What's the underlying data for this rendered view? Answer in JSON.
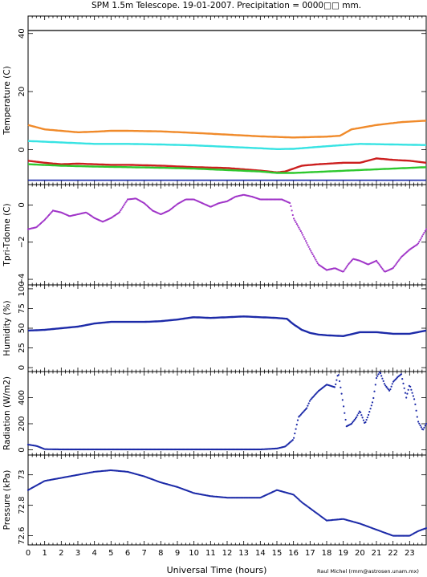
{
  "page": {
    "title": "SPM 1.5m Telescope. 19-01-2007. Precipitation = 0000□□ mm.",
    "xlabel": "Universal Time (hours)",
    "credit": "Raul Michel (rmm@astrosen.unam.mx)"
  },
  "colors": {
    "axis": "#000000",
    "orange": "#f08a2a",
    "cyan": "#37e3e3",
    "red": "#cc1f1f",
    "green": "#2ec82e",
    "blue": "#1a2aa8",
    "black_line": "#3a3a3a",
    "purple": "#a035c8",
    "navy": "#1c2aa8"
  },
  "chart_data": [
    {
      "type": "line",
      "ylabel": "Temperature (C)",
      "ylim": [
        -12,
        46
      ],
      "xlim": [
        0,
        24
      ],
      "yticks": [
        {
          "v": 0,
          "label": "0"
        },
        {
          "v": 20,
          "label": "20"
        },
        {
          "v": 40,
          "label": "40"
        }
      ],
      "series": [
        {
          "color": "black_line",
          "x": [
            0,
            4,
            8,
            12,
            16,
            20,
            24
          ],
          "y": [
            41,
            41,
            41,
            41,
            41,
            41,
            41
          ]
        },
        {
          "color": "orange",
          "x": [
            0,
            1,
            2,
            3,
            4,
            5,
            6,
            8,
            10,
            12,
            14,
            16,
            18,
            18.8,
            19.5,
            21,
            22.5,
            24
          ],
          "y": [
            8.5,
            7,
            6.5,
            6,
            6.2,
            6.5,
            6.5,
            6.3,
            5.8,
            5.2,
            4.6,
            4.2,
            4.5,
            4.8,
            7,
            8.5,
            9.5,
            10
          ]
        },
        {
          "color": "cyan",
          "x": [
            0,
            2,
            4,
            6,
            8,
            10,
            12,
            14,
            15,
            16,
            18,
            20,
            22,
            24
          ],
          "y": [
            3,
            2.5,
            2,
            2,
            1.8,
            1.5,
            1,
            0.5,
            0.2,
            0.3,
            1.2,
            2,
            1.8,
            1.6
          ]
        },
        {
          "color": "red",
          "x": [
            0,
            1,
            2,
            3,
            4,
            5,
            6,
            8,
            10,
            12,
            14,
            15,
            15.5,
            16.5,
            17.5,
            19,
            20,
            21,
            22,
            23,
            24
          ],
          "y": [
            -3.8,
            -4.5,
            -5,
            -4.8,
            -5,
            -5.2,
            -5.2,
            -5.5,
            -6,
            -6.3,
            -7.2,
            -7.8,
            -7.5,
            -5.5,
            -5,
            -4.5,
            -4.5,
            -3,
            -3.5,
            -3.8,
            -4.5
          ]
        },
        {
          "color": "green",
          "x": [
            0,
            2,
            4,
            6,
            8,
            10,
            12,
            14,
            15,
            16,
            18,
            20,
            22,
            24
          ],
          "y": [
            -5,
            -5.5,
            -5.8,
            -6,
            -6.2,
            -6.5,
            -7,
            -7.5,
            -8,
            -8,
            -7.5,
            -7,
            -6.5,
            -6
          ]
        },
        {
          "color": "blue",
          "x": [
            0,
            6,
            12,
            18,
            24
          ],
          "y": [
            -10.5,
            -10.5,
            -10.5,
            -10.5,
            -10.5
          ]
        }
      ]
    },
    {
      "type": "scatter",
      "ylabel": "Tpri-Tdome (C)",
      "ylim": [
        -4.3,
        1.1
      ],
      "xlim": [
        0,
        24
      ],
      "yticks": [
        {
          "v": 0,
          "label": "0"
        },
        {
          "v": -2,
          "label": "−2"
        },
        {
          "v": -4,
          "label": "−4"
        }
      ],
      "series": [
        {
          "color": "purple",
          "x": [
            0,
            0.5,
            1,
            1.5,
            2,
            2.5,
            3,
            3.5,
            4,
            4.5,
            5,
            5.5,
            6,
            6.5,
            7,
            7.5,
            8,
            8.5,
            9,
            9.5,
            10,
            10.5,
            11,
            11.5,
            12,
            12.5,
            13,
            13.5,
            14,
            14.5,
            15,
            15.3,
            15.8,
            16,
            16.5,
            17,
            17.5,
            18,
            18.5,
            19,
            19.3,
            19.6,
            20,
            20.5,
            21,
            21.5,
            22,
            22.5,
            23,
            23.5,
            24
          ],
          "y": [
            -1.3,
            -1.2,
            -0.8,
            -0.3,
            -0.4,
            -0.6,
            -0.5,
            -0.4,
            -0.7,
            -0.9,
            -0.7,
            -0.4,
            0.3,
            0.35,
            0.1,
            -0.3,
            -0.5,
            -0.3,
            0.05,
            0.3,
            0.3,
            0.1,
            -0.1,
            0.1,
            0.2,
            0.45,
            0.55,
            0.45,
            0.3,
            0.3,
            0.3,
            0.3,
            0.1,
            -0.7,
            -1.5,
            -2.4,
            -3.2,
            -3.5,
            -3.4,
            -3.6,
            -3.2,
            -2.9,
            -3.0,
            -3.2,
            -3.0,
            -3.6,
            -3.4,
            -2.8,
            -2.4,
            -2.1,
            -1.3
          ]
        }
      ]
    },
    {
      "type": "line",
      "ylabel": "Humidity (%)",
      "ylim": [
        -5,
        105
      ],
      "xlim": [
        0,
        24
      ],
      "yticks": [
        {
          "v": 0,
          "label": "0"
        },
        {
          "v": 25,
          "label": "25"
        },
        {
          "v": 50,
          "label": "50"
        },
        {
          "v": 75,
          "label": "75"
        },
        {
          "v": 100,
          "label": "100"
        }
      ],
      "series": [
        {
          "color": "navy",
          "x": [
            0,
            1,
            2,
            3,
            4,
            5,
            6,
            7,
            8,
            9,
            10,
            11,
            12,
            13,
            14,
            15,
            15.6,
            16,
            16.5,
            17,
            17.5,
            18,
            19,
            20,
            21,
            22,
            23,
            24
          ],
          "y": [
            47,
            48,
            50,
            52,
            56,
            58,
            58,
            58,
            59,
            61,
            64,
            63,
            64,
            65,
            64,
            63,
            62,
            55,
            48,
            44,
            42,
            41,
            40,
            45,
            45,
            43,
            43,
            47
          ]
        }
      ]
    },
    {
      "type": "scatter",
      "ylabel": "Radiation (W/m2)",
      "ylim": [
        -40,
        600
      ],
      "xlim": [
        0,
        24
      ],
      "yticks": [
        {
          "v": 0,
          "label": "0"
        },
        {
          "v": 200,
          "label": "200"
        },
        {
          "v": 400,
          "label": "400"
        }
      ],
      "series": [
        {
          "color": "navy",
          "x": [
            0,
            0.5,
            1,
            2,
            4,
            6,
            8,
            10,
            12,
            14,
            15,
            15.5,
            16,
            16.3,
            16.8,
            17,
            17.5,
            18,
            18.5,
            18.7,
            19,
            19.2,
            19.5,
            19.8,
            20,
            20.3,
            20.5,
            20.8,
            21,
            21.2,
            21.5,
            21.8,
            22,
            22.3,
            22.5,
            22.8,
            23,
            23.3,
            23.5,
            23.8,
            24
          ],
          "y": [
            40,
            30,
            5,
            3,
            3,
            3,
            3,
            3,
            3,
            3,
            10,
            25,
            80,
            250,
            320,
            380,
            450,
            500,
            480,
            590,
            350,
            180,
            200,
            250,
            300,
            200,
            260,
            380,
            550,
            600,
            500,
            450,
            520,
            560,
            580,
            400,
            500,
            380,
            220,
            150,
            200
          ]
        }
      ]
    },
    {
      "type": "scatter",
      "ylabel": "Pressure (kPa)",
      "ylim": [
        72.54,
        73.13
      ],
      "xlim": [
        0,
        24
      ],
      "yticks": [
        {
          "v": 72.6,
          "label": "72.6"
        },
        {
          "v": 72.8,
          "label": "72.8"
        },
        {
          "v": 73,
          "label": "73"
        }
      ],
      "series": [
        {
          "color": "navy",
          "x": [
            0,
            0.5,
            1,
            2,
            3,
            4,
            5,
            6,
            7,
            8,
            9,
            10,
            11,
            12,
            13,
            14,
            15,
            16,
            16.5,
            17,
            17.5,
            18,
            19,
            20,
            20.5,
            21,
            22,
            23,
            23.5,
            24
          ],
          "y": [
            72.9,
            72.93,
            72.96,
            72.98,
            73.0,
            73.02,
            73.03,
            73.02,
            72.99,
            72.95,
            72.92,
            72.88,
            72.86,
            72.85,
            72.85,
            72.85,
            72.9,
            72.87,
            72.82,
            72.78,
            72.74,
            72.7,
            72.71,
            72.68,
            72.66,
            72.64,
            72.6,
            72.6,
            72.63,
            72.65
          ]
        }
      ]
    }
  ],
  "x_axis": {
    "ticks": [
      "0",
      "1",
      "2",
      "3",
      "4",
      "5",
      "6",
      "7",
      "8",
      "9",
      "10",
      "11",
      "12",
      "13",
      "14",
      "15",
      "16",
      "17",
      "18",
      "19",
      "20",
      "21",
      "22",
      "23"
    ]
  }
}
